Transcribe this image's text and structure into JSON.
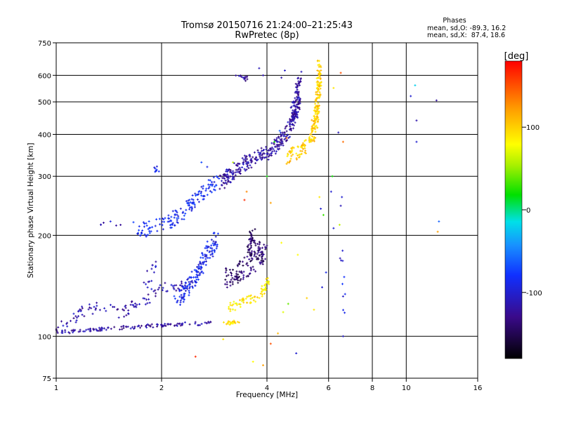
{
  "chart_data": {
    "type": "scatter",
    "title": "Tromsø 20150716 21:24:00–21:25:43",
    "subtitle": "RwPretec (8p)",
    "xlabel": "Frequency [MHz]",
    "ylabel": "Stationary phase Virtual Height [km]",
    "xscale": "log",
    "yscale": "log",
    "xlim": [
      1,
      16
    ],
    "ylim": [
      75,
      750
    ],
    "xticks": [
      1,
      2,
      4,
      6,
      8,
      10,
      16
    ],
    "xtick_labels": [
      "1",
      "2",
      "4",
      "6",
      "8",
      "10",
      "16"
    ],
    "yticks": [
      75,
      100,
      200,
      300,
      400,
      500,
      600,
      750
    ],
    "ytick_labels": [
      "75",
      "100",
      "200",
      "300",
      "400",
      "500",
      "600",
      "750"
    ],
    "grid": true,
    "stats": {
      "heading": "Phases",
      "line_o": "mean, sd,O: -89.3, 16.2",
      "line_x": "mean, sd,X:  87.4, 18.6"
    },
    "colorbar": {
      "label": "[deg]",
      "range": [
        -180,
        180
      ],
      "ticks": [
        100,
        0,
        -100
      ],
      "tick_labels": [
        "100",
        "0",
        "-100"
      ]
    },
    "clusters": [
      {
        "kind": "curve",
        "pts": [
          [
            1.0,
            103
          ],
          [
            1.05,
            102.5
          ],
          [
            1.1,
            103
          ],
          [
            1.15,
            103.5
          ],
          [
            1.2,
            104
          ],
          [
            1.28,
            104.5
          ],
          [
            1.35,
            105
          ],
          [
            1.45,
            106
          ],
          [
            1.55,
            106
          ],
          [
            1.65,
            106.5
          ],
          [
            1.75,
            107
          ],
          [
            1.85,
            107.5
          ],
          [
            2.0,
            108
          ],
          [
            2.1,
            108
          ],
          [
            2.2,
            108.5
          ],
          [
            2.35,
            109
          ],
          [
            2.5,
            109
          ],
          [
            2.65,
            109.5
          ],
          [
            2.8,
            110
          ]
        ],
        "dh": 0.012,
        "n": 120,
        "phase": -120
      },
      {
        "kind": "curve",
        "pts": [
          [
            1.0,
            105
          ],
          [
            1.1,
            112
          ],
          [
            1.2,
            118
          ],
          [
            1.3,
            122
          ],
          [
            1.4,
            120
          ],
          [
            1.5,
            118
          ],
          [
            1.6,
            120
          ],
          [
            1.7,
            124
          ],
          [
            1.8,
            128
          ],
          [
            1.9,
            134
          ],
          [
            2.0,
            138
          ],
          [
            2.1,
            140
          ],
          [
            2.2,
            142
          ],
          [
            2.3,
            140
          ],
          [
            2.4,
            138
          ]
        ],
        "dh": 0.04,
        "n": 110,
        "phase": -115
      },
      {
        "kind": "curve",
        "pts": [
          [
            1.65,
            210
          ],
          [
            1.8,
            208
          ],
          [
            1.95,
            214
          ],
          [
            2.1,
            220
          ],
          [
            2.3,
            232
          ],
          [
            2.45,
            250
          ],
          [
            2.6,
            265
          ],
          [
            2.75,
            278
          ],
          [
            2.9,
            290
          ]
        ],
        "dh": 0.05,
        "n": 150,
        "phase": -85
      },
      {
        "kind": "curve",
        "pts": [
          [
            2.2,
            128
          ],
          [
            2.3,
            134
          ],
          [
            2.4,
            142
          ],
          [
            2.5,
            152
          ],
          [
            2.6,
            164
          ],
          [
            2.7,
            176
          ],
          [
            2.8,
            188
          ],
          [
            2.9,
            198
          ]
        ],
        "dh": 0.06,
        "n": 160,
        "phase": -90
      },
      {
        "kind": "curve",
        "pts": [
          [
            1.3,
            212
          ],
          [
            1.45,
            218
          ],
          [
            1.55,
            215
          ]
        ],
        "dh": 0.02,
        "n": 6,
        "phase": -110
      },
      {
        "kind": "curve",
        "pts": [
          [
            1.9,
            310
          ],
          [
            1.95,
            318
          ]
        ],
        "dh": 0.02,
        "n": 8,
        "phase": -95
      },
      {
        "kind": "curve",
        "pts": [
          [
            1.8,
            140
          ],
          [
            1.85,
            152
          ],
          [
            1.9,
            160
          ],
          [
            1.95,
            168
          ]
        ],
        "dh": 0.05,
        "n": 14,
        "phase": -105
      },
      {
        "kind": "curve",
        "pts": [
          [
            2.95,
            285
          ],
          [
            3.1,
            300
          ],
          [
            3.3,
            318
          ],
          [
            3.5,
            330
          ],
          [
            3.7,
            340
          ],
          [
            3.9,
            350
          ],
          [
            4.1,
            358
          ],
          [
            4.3,
            372
          ],
          [
            4.5,
            395
          ],
          [
            4.7,
            430
          ],
          [
            4.85,
            470
          ],
          [
            4.95,
            520
          ]
        ],
        "dh": 0.05,
        "n": 330,
        "phase": -120
      },
      {
        "kind": "curve",
        "pts": [
          [
            3.05,
            148
          ],
          [
            3.2,
            152
          ],
          [
            3.4,
            158
          ],
          [
            3.6,
            165
          ],
          [
            3.8,
            170
          ],
          [
            3.95,
            175
          ],
          [
            3.55,
            185
          ],
          [
            3.65,
            200
          ]
        ],
        "dh": 0.07,
        "n": 180,
        "phase": -140
      },
      {
        "kind": "curve",
        "pts": [
          [
            3.3,
            600
          ],
          [
            3.45,
            598
          ],
          [
            3.5,
            575
          ]
        ],
        "dh": 0.02,
        "n": 14,
        "phase": -120
      },
      {
        "kind": "curve",
        "pts": [
          [
            3.1,
            120
          ],
          [
            3.3,
            125
          ],
          [
            3.5,
            128
          ],
          [
            3.7,
            130
          ],
          [
            3.9,
            136
          ],
          [
            4.0,
            145
          ],
          [
            4.05,
            150
          ]
        ],
        "dh": 0.03,
        "n": 70,
        "phase": 88
      },
      {
        "kind": "curve",
        "pts": [
          [
            3.05,
            109
          ],
          [
            3.15,
            110
          ],
          [
            3.3,
            111
          ]
        ],
        "dh": 0.01,
        "n": 22,
        "phase": 92
      },
      {
        "kind": "curve",
        "pts": [
          [
            4.6,
            340
          ],
          [
            4.8,
            350
          ],
          [
            5.0,
            360
          ],
          [
            5.2,
            375
          ],
          [
            5.4,
            400
          ],
          [
            5.5,
            440
          ],
          [
            5.55,
            480
          ],
          [
            5.6,
            530
          ],
          [
            5.65,
            580
          ],
          [
            5.65,
            640
          ]
        ],
        "dh": 0.05,
        "n": 230,
        "phase": 100
      },
      {
        "kind": "curve",
        "pts": [
          [
            4.7,
            420
          ],
          [
            4.75,
            470
          ],
          [
            4.85,
            520
          ],
          [
            4.95,
            600
          ]
        ],
        "dh": 0.04,
        "n": 50,
        "phase": -120
      },
      {
        "kind": "curve",
        "pts": [
          [
            6.35,
            175
          ],
          [
            6.5,
            170
          ],
          [
            6.6,
            150
          ],
          [
            6.65,
            125
          ]
        ],
        "dh": 0.08,
        "n": 10,
        "phase": -95
      }
    ],
    "singles": [
      [
        2.5,
        87,
        165
      ],
      [
        3.0,
        98,
        90
      ],
      [
        4.1,
        95,
        150
      ],
      [
        4.3,
        102,
        110
      ],
      [
        4.45,
        118,
        70
      ],
      [
        4.6,
        125,
        40
      ],
      [
        4.4,
        190,
        80
      ],
      [
        4.1,
        250,
        120
      ],
      [
        3.45,
        255,
        165
      ],
      [
        3.5,
        270,
        130
      ],
      [
        4.0,
        300,
        20
      ],
      [
        4.2,
        380,
        20
      ],
      [
        4.35,
        410,
        -60
      ],
      [
        4.55,
        390,
        140
      ],
      [
        3.65,
        84,
        80
      ],
      [
        4.85,
        89,
        -100
      ],
      [
        5.65,
        260,
        90
      ],
      [
        5.7,
        240,
        -100
      ],
      [
        5.8,
        230,
        30
      ],
      [
        6.1,
        270,
        -100
      ],
      [
        6.15,
        300,
        20
      ],
      [
        6.4,
        405,
        -110
      ],
      [
        6.2,
        550,
        90
      ],
      [
        6.5,
        610,
        150
      ],
      [
        6.6,
        380,
        140
      ],
      [
        6.2,
        210,
        -100
      ],
      [
        6.45,
        215,
        60
      ],
      [
        6.5,
        245,
        -110
      ],
      [
        6.55,
        260,
        -100
      ],
      [
        5.75,
        140,
        -100
      ],
      [
        5.9,
        155,
        -90
      ],
      [
        10.3,
        520,
        -100
      ],
      [
        10.6,
        560,
        -20
      ],
      [
        10.7,
        440,
        -115
      ],
      [
        10.7,
        380,
        -100
      ],
      [
        12.2,
        505,
        -120
      ],
      [
        12.4,
        220,
        -60
      ],
      [
        12.3,
        205,
        120
      ],
      [
        6.6,
        100,
        -105
      ],
      [
        5.45,
        120,
        90
      ],
      [
        5.2,
        130,
        100
      ],
      [
        4.9,
        175,
        80
      ],
      [
        3.9,
        82,
        120
      ],
      [
        2.6,
        330,
        -70
      ],
      [
        2.7,
        320,
        -90
      ],
      [
        3.2,
        330,
        60
      ],
      [
        3.9,
        600,
        -115
      ],
      [
        3.8,
        630,
        -110
      ],
      [
        4.4,
        590,
        -115
      ],
      [
        4.5,
        620,
        -105
      ]
    ]
  }
}
